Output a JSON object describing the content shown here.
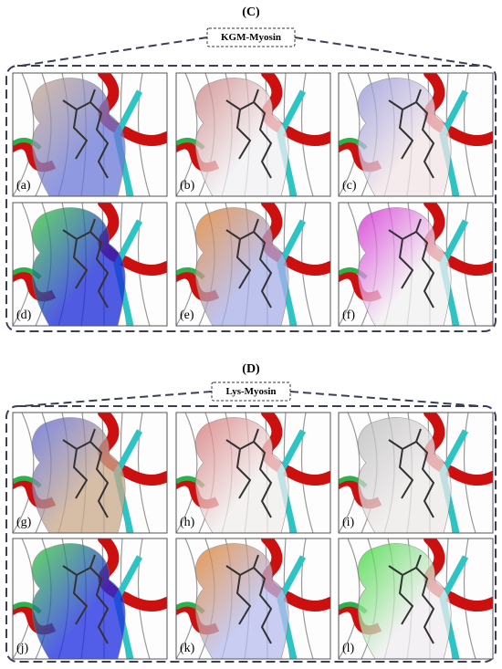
{
  "sections": [
    {
      "heading": "(C)",
      "label": "KGM-Myosin",
      "panels": [
        "(a)",
        "(b)",
        "(c)",
        "(d)",
        "(e)",
        "(f)"
      ]
    },
    {
      "heading": "(D)",
      "label": "Lys-Myosin",
      "panels": [
        "(g)",
        "(h)",
        "(i)",
        "(j)",
        "(k)",
        "(l)"
      ]
    }
  ]
}
